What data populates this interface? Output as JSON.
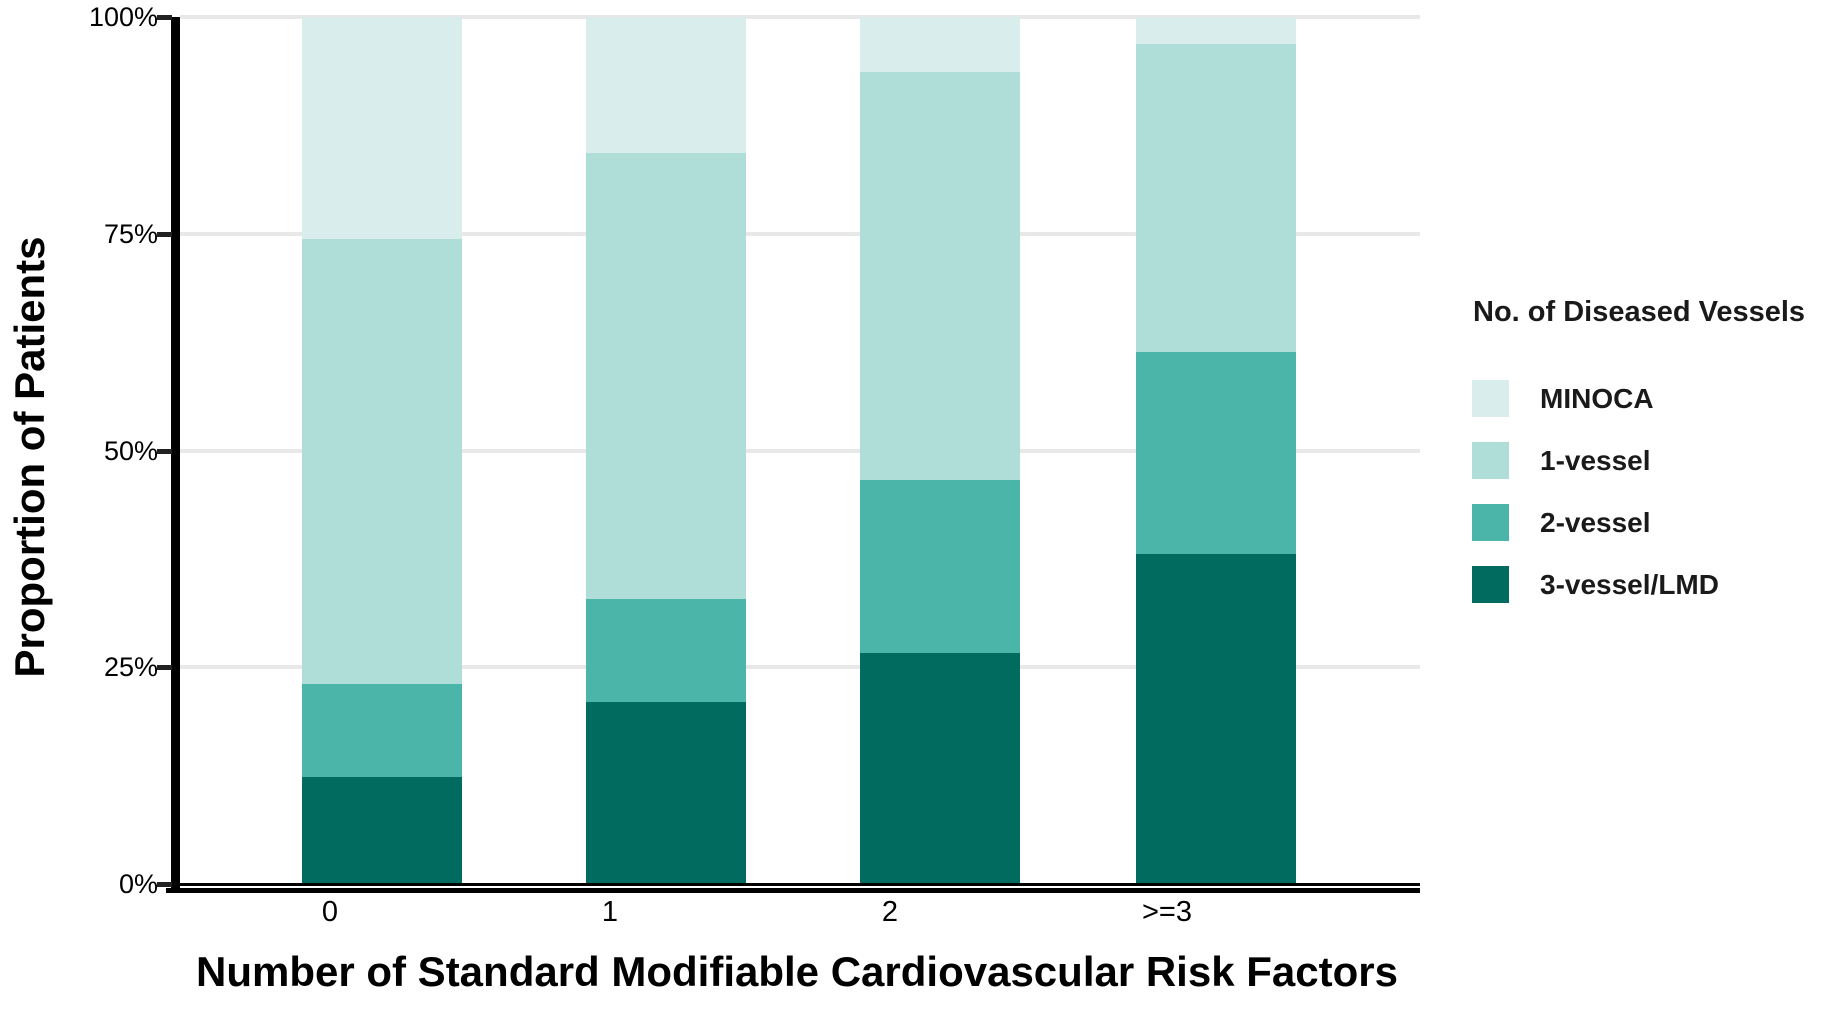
{
  "chart_data": {
    "type": "bar",
    "variant": "stacked-100-percent",
    "title": "",
    "xlabel": "Number of Standard Modifiable Cardiovascular Risk Factors",
    "ylabel": "Proportion of Patients",
    "categories": [
      "0",
      "1",
      "2",
      ">=3"
    ],
    "y_tick_labels": [
      "0%",
      "25%",
      "50%",
      "75%",
      "100%"
    ],
    "y_tick_values": [
      0,
      25,
      50,
      75,
      100
    ],
    "ylim": [
      0,
      100
    ],
    "unit": "percent",
    "grid": "horizontal",
    "legend": {
      "title": "No. of Diseased Vessels",
      "position": "right",
      "entries": [
        "MINOCA",
        "1-vessel",
        "2-vessel",
        "3-vessel/LMD"
      ]
    },
    "stack_order_bottom_to_top": [
      "3-vessel/LMD",
      "2-vessel",
      "1-vessel",
      "MINOCA"
    ],
    "series": [
      {
        "name": "MINOCA",
        "color": "#d9eeec",
        "values": [
          25.6,
          15.7,
          6.4,
          3.1
        ]
      },
      {
        "name": "1-vessel",
        "color": "#afddd8",
        "values": [
          51.3,
          51.4,
          47.0,
          35.5
        ]
      },
      {
        "name": "2-vessel",
        "color": "#4bb5aa",
        "values": [
          10.8,
          11.9,
          20.0,
          23.3
        ]
      },
      {
        "name": "3-vessel/LMD",
        "color": "#006b5e",
        "values": [
          12.3,
          21.0,
          26.6,
          38.1
        ]
      }
    ],
    "colors": {
      "gridline": "#e8e8e8",
      "axis": "#000000",
      "text": "#000000",
      "background": "#ffffff"
    }
  }
}
